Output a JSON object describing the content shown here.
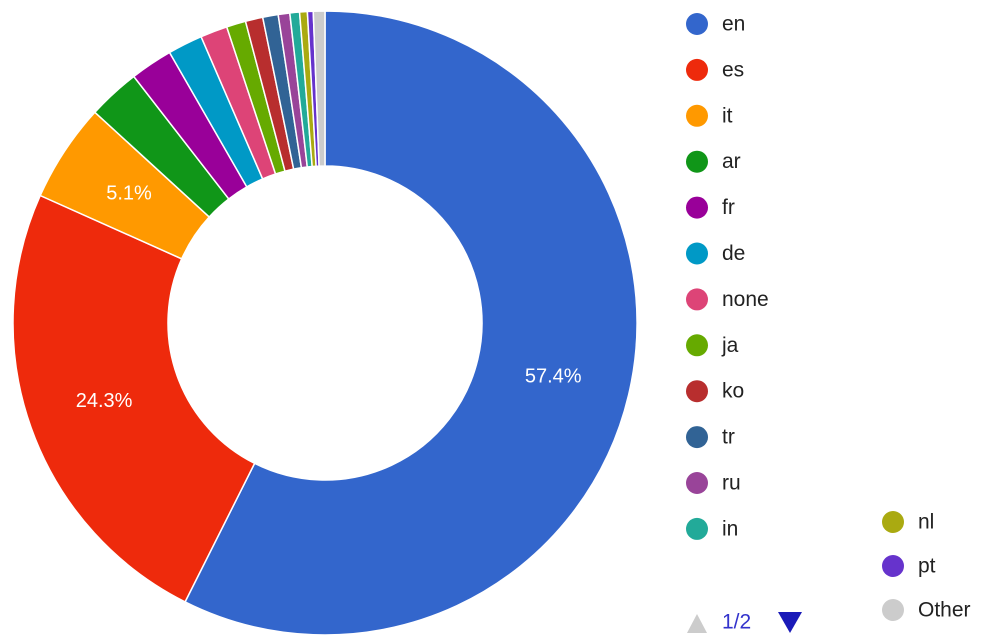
{
  "chart_data": {
    "type": "donut",
    "categories": [
      "en",
      "es",
      "it",
      "ar",
      "fr",
      "de",
      "none",
      "ja",
      "ko",
      "tr",
      "ru",
      "in",
      "nl",
      "pt",
      "Other"
    ],
    "values": [
      57.4,
      24.3,
      5.1,
      2.7,
      2.2,
      1.8,
      1.4,
      1.0,
      0.9,
      0.8,
      0.6,
      0.5,
      0.4,
      0.3,
      0.6
    ],
    "value_labels": [
      "57.4%",
      "24.3%",
      "5.1%",
      null,
      null,
      null,
      null,
      null,
      null,
      null,
      null,
      null,
      null,
      null,
      null
    ],
    "colors": [
      "#3366cc",
      "#ee2a0c",
      "#ff9900",
      "#109618",
      "#990099",
      "#0099c6",
      "#dd4477",
      "#66aa00",
      "#b82e2e",
      "#316395",
      "#994499",
      "#22aa99",
      "#aaaa11",
      "#6633cc",
      "#cccccc"
    ],
    "legend_page": "1/2"
  }
}
